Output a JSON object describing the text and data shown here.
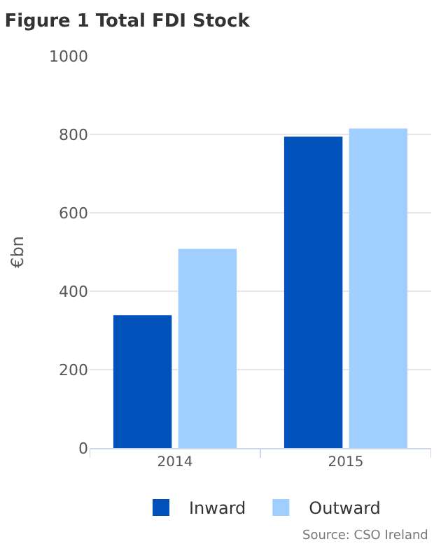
{
  "chart_data": {
    "type": "bar",
    "title": "Figure 1 Total FDI Stock",
    "ylabel": "€bn",
    "categories": [
      "2014",
      "2015"
    ],
    "series": [
      {
        "name": "Inward",
        "color": "#0051b9",
        "values": [
          339,
          794
        ]
      },
      {
        "name": "Outward",
        "color": "#a0cfff",
        "values": [
          508,
          815
        ]
      }
    ],
    "ylim": [
      0,
      1000
    ],
    "yticks": [
      0,
      200,
      400,
      600,
      800,
      1000
    ],
    "grid": "y",
    "legend": "bottom",
    "annotations": [
      "Source: CSO Ireland"
    ]
  }
}
